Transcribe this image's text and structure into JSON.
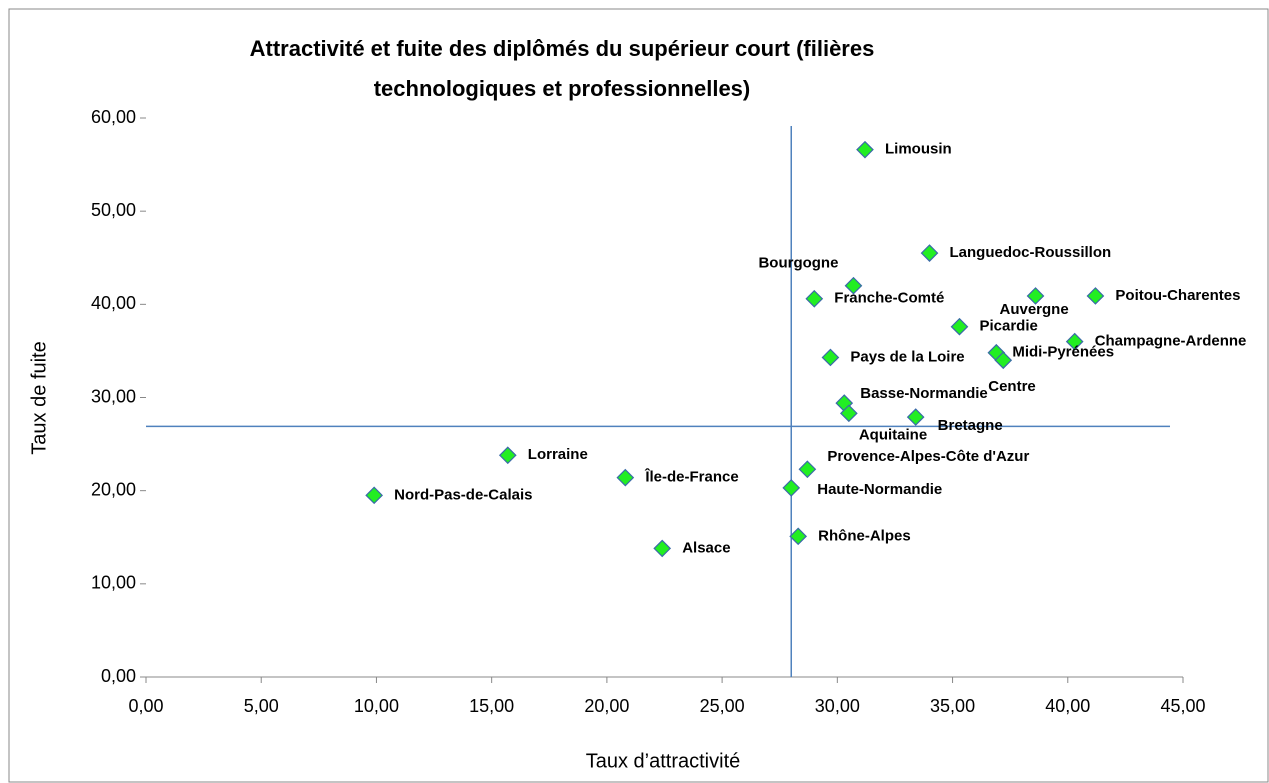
{
  "chart_data": {
    "type": "scatter",
    "title": [
      "Attractivité et fuite des diplômés du supérieur court (filières",
      "technologiques et professionnelles)"
    ],
    "xlabel": "Taux d’attractivité",
    "ylabel": "Taux de fuite",
    "xlim": [
      0,
      45
    ],
    "xticks": [
      {
        "value": 0,
        "label": "0,00"
      },
      {
        "value": 5,
        "label": "5,00"
      },
      {
        "value": 10,
        "label": "10,00"
      },
      {
        "value": 15,
        "label": "15,00"
      },
      {
        "value": 20,
        "label": "20,00"
      },
      {
        "value": 25,
        "label": "25,00"
      },
      {
        "value": 30,
        "label": "30,00"
      },
      {
        "value": 35,
        "label": "35,00"
      },
      {
        "value": 40,
        "label": "40,00"
      },
      {
        "value": 45,
        "label": "45,00"
      }
    ],
    "ylim": [
      0,
      60
    ],
    "yticks": [
      {
        "value": 0,
        "label": "0,00"
      },
      {
        "value": 10,
        "label": "10,00"
      },
      {
        "value": 20,
        "label": "20,00"
      },
      {
        "value": 30,
        "label": "30,00"
      },
      {
        "value": 40,
        "label": "40,00"
      },
      {
        "value": 50,
        "label": "50,00"
      },
      {
        "value": 60,
        "label": "60,00"
      }
    ],
    "color": "#22ee22",
    "reference_x": 28.0,
    "reference_y": 26.9,
    "labels": [
      "Limousin",
      "Languedoc-Roussillon",
      "Bourgogne",
      "Franche-Comté",
      "Auvergne",
      "Poitou-Charentes",
      "Picardie",
      "Champagne-Ardenne",
      "Pays de la Loire",
      "Midi-Pyrénées",
      "Centre",
      "Basse-Normandie",
      "Aquitaine",
      "Bretagne",
      "Lorraine",
      "Provence-Alpes-Côte d'Azur",
      "Île-de-France",
      "Haute-Normandie",
      "Nord-Pas-de-Calais",
      "Rhône-Alpes",
      "Alsace"
    ],
    "x": [
      31.2,
      34.0,
      30.7,
      29.0,
      38.6,
      41.2,
      35.3,
      40.3,
      29.7,
      36.9,
      37.2,
      30.3,
      30.5,
      33.4,
      15.7,
      28.7,
      20.8,
      28.0,
      9.9,
      28.3,
      22.4
    ],
    "values": [
      56.6,
      45.5,
      42.0,
      40.6,
      40.9,
      40.9,
      37.6,
      36.0,
      34.3,
      34.8,
      34.0,
      29.4,
      28.3,
      27.9,
      23.8,
      22.3,
      21.4,
      20.3,
      19.5,
      15.1,
      13.8
    ]
  }
}
